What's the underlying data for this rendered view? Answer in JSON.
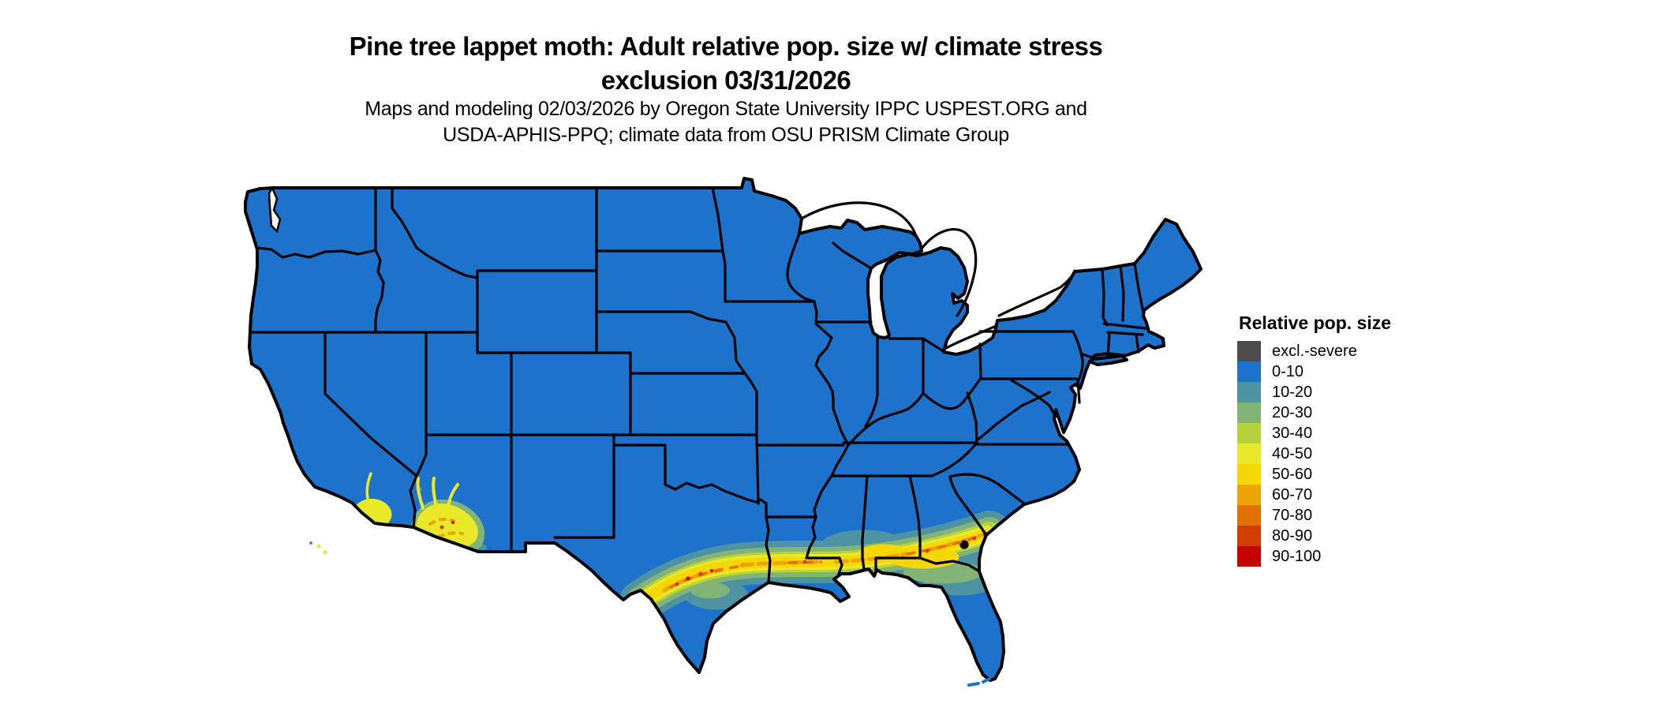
{
  "header": {
    "title_line1": "Pine tree lappet moth: Adult relative pop. size w/ climate stress",
    "title_line2": "exclusion 03/31/2026",
    "subtitle_line1": "Maps and modeling 02/03/2026 by Oregon State University IPPC USPEST.ORG and",
    "subtitle_line2": "USDA-APHIS-PPQ; climate data from OSU PRISM Climate Group"
  },
  "legend": {
    "title": "Relative pop. size",
    "items": [
      {
        "label": "excl.-severe",
        "color": "#4d4d4d"
      },
      {
        "label": "0-10",
        "color": "#1d72cc"
      },
      {
        "label": "10-20",
        "color": "#4e93a2"
      },
      {
        "label": "20-30",
        "color": "#82b377"
      },
      {
        "label": "30-40",
        "color": "#b8d23b"
      },
      {
        "label": "40-50",
        "color": "#e9e829"
      },
      {
        "label": "50-60",
        "color": "#f6d800"
      },
      {
        "label": "60-70",
        "color": "#eda504"
      },
      {
        "label": "70-80",
        "color": "#e07000"
      },
      {
        "label": "80-90",
        "color": "#d23d02"
      },
      {
        "label": "90-100",
        "color": "#c50300"
      }
    ]
  },
  "map": {
    "type": "choropleth raster map",
    "region": "Contiguous United States with state boundaries",
    "background_color": "#ffffff",
    "state_border_color": "#000000",
    "dominant_class": "0-10",
    "elevated_population_areas": [
      "Gulf Coast band from southwest Texas through Louisiana, Mississippi, Alabama and Georgia to the South Carolina coast",
      "Florida panhandle fringe",
      "southern Arizona",
      "southern California"
    ]
  }
}
